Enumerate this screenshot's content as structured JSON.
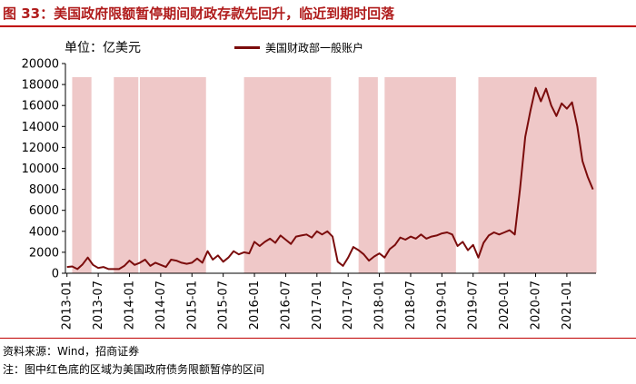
{
  "figure_title": "图 33：美国政府限额暂停期间财政存款先回升，临近到期时回落",
  "unit_label": "单位：亿美元",
  "source": "资料来源：Wind，招商证券",
  "note": "注：图中红色底的区域为美国政府债务限额暂停的区间",
  "colors": {
    "line": "#7b0c0c",
    "shade": "#efc8c8",
    "title": "#b01c1c"
  },
  "chart_data": {
    "type": "line",
    "x_type": "month",
    "ylim": [
      0,
      20000
    ],
    "yticks": [
      0,
      2000,
      4000,
      6000,
      8000,
      10000,
      12000,
      14000,
      16000,
      18000,
      20000
    ],
    "xlim": [
      "2013-01",
      "2021-06"
    ],
    "xticks": [
      "2013-01",
      "2013-07",
      "2014-01",
      "2014-07",
      "2015-01",
      "2015-07",
      "2016-01",
      "2016-07",
      "2017-01",
      "2017-07",
      "2018-01",
      "2018-07",
      "2019-01",
      "2019-07",
      "2020-01",
      "2020-07",
      "2021-01"
    ],
    "legend": "top",
    "series": [
      {
        "name": "美国财政部一般账户",
        "points": [
          [
            "2013-01",
            600
          ],
          [
            "2013-02",
            650
          ],
          [
            "2013-03",
            400
          ],
          [
            "2013-04",
            850
          ],
          [
            "2013-05",
            1500
          ],
          [
            "2013-06",
            800
          ],
          [
            "2013-07",
            500
          ],
          [
            "2013-08",
            600
          ],
          [
            "2013-09",
            400
          ],
          [
            "2013-10",
            400
          ],
          [
            "2013-11",
            400
          ],
          [
            "2013-12",
            700
          ],
          [
            "2014-01",
            1200
          ],
          [
            "2014-02",
            800
          ],
          [
            "2014-03",
            1000
          ],
          [
            "2014-04",
            1300
          ],
          [
            "2014-05",
            700
          ],
          [
            "2014-06",
            1000
          ],
          [
            "2014-07",
            800
          ],
          [
            "2014-08",
            600
          ],
          [
            "2014-09",
            1300
          ],
          [
            "2014-10",
            1200
          ],
          [
            "2014-11",
            1000
          ],
          [
            "2014-12",
            900
          ],
          [
            "2015-01",
            1000
          ],
          [
            "2015-02",
            1400
          ],
          [
            "2015-03",
            1000
          ],
          [
            "2015-04",
            2100
          ],
          [
            "2015-05",
            1300
          ],
          [
            "2015-06",
            1700
          ],
          [
            "2015-07",
            1100
          ],
          [
            "2015-08",
            1500
          ],
          [
            "2015-09",
            2100
          ],
          [
            "2015-10",
            1800
          ],
          [
            "2015-11",
            2000
          ],
          [
            "2015-12",
            1900
          ],
          [
            "2016-01",
            3000
          ],
          [
            "2016-02",
            2600
          ],
          [
            "2016-03",
            3000
          ],
          [
            "2016-04",
            3300
          ],
          [
            "2016-05",
            2900
          ],
          [
            "2016-06",
            3600
          ],
          [
            "2016-07",
            3200
          ],
          [
            "2016-08",
            2800
          ],
          [
            "2016-09",
            3500
          ],
          [
            "2016-10",
            3600
          ],
          [
            "2016-11",
            3700
          ],
          [
            "2016-12",
            3400
          ],
          [
            "2017-01",
            4000
          ],
          [
            "2017-02",
            3700
          ],
          [
            "2017-03",
            4000
          ],
          [
            "2017-04",
            3500
          ],
          [
            "2017-05",
            1100
          ],
          [
            "2017-06",
            700
          ],
          [
            "2017-07",
            1500
          ],
          [
            "2017-08",
            2500
          ],
          [
            "2017-09",
            2200
          ],
          [
            "2017-10",
            1800
          ],
          [
            "2017-11",
            1200
          ],
          [
            "2017-12",
            1600
          ],
          [
            "2018-01",
            1900
          ],
          [
            "2018-02",
            1500
          ],
          [
            "2018-03",
            2300
          ],
          [
            "2018-04",
            2700
          ],
          [
            "2018-05",
            3400
          ],
          [
            "2018-06",
            3200
          ],
          [
            "2018-07",
            3500
          ],
          [
            "2018-08",
            3300
          ],
          [
            "2018-09",
            3700
          ],
          [
            "2018-10",
            3300
          ],
          [
            "2018-11",
            3500
          ],
          [
            "2018-12",
            3600
          ],
          [
            "2019-01",
            3800
          ],
          [
            "2019-02",
            3900
          ],
          [
            "2019-03",
            3700
          ],
          [
            "2019-04",
            2600
          ],
          [
            "2019-05",
            3000
          ],
          [
            "2019-06",
            2200
          ],
          [
            "2019-07",
            2700
          ],
          [
            "2019-08",
            1500
          ],
          [
            "2019-09",
            2900
          ],
          [
            "2019-10",
            3600
          ],
          [
            "2019-11",
            3900
          ],
          [
            "2019-12",
            3700
          ],
          [
            "2020-01",
            3900
          ],
          [
            "2020-02",
            4100
          ],
          [
            "2020-03",
            3700
          ],
          [
            "2020-04",
            8000
          ],
          [
            "2020-05",
            13000
          ],
          [
            "2020-06",
            15500
          ],
          [
            "2020-07",
            17700
          ],
          [
            "2020-08",
            16400
          ],
          [
            "2020-09",
            17600
          ],
          [
            "2020-10",
            16000
          ],
          [
            "2020-11",
            15000
          ],
          [
            "2020-12",
            16200
          ],
          [
            "2021-01",
            15700
          ],
          [
            "2021-02",
            16300
          ],
          [
            "2021-03",
            14000
          ],
          [
            "2021-04",
            10700
          ],
          [
            "2021-05",
            9200
          ],
          [
            "2021-06",
            8000
          ]
        ]
      }
    ],
    "shaded_periods": [
      [
        "2013-02",
        "2013-05"
      ],
      [
        "2013-10",
        "2014-02"
      ],
      [
        "2014-03",
        "2015-03"
      ],
      [
        "2015-11",
        "2017-03"
      ],
      [
        "2018-02",
        "2019-03"
      ],
      [
        "2017-09",
        "2017-12"
      ],
      [
        "2019-08",
        "2021-06"
      ]
    ]
  }
}
